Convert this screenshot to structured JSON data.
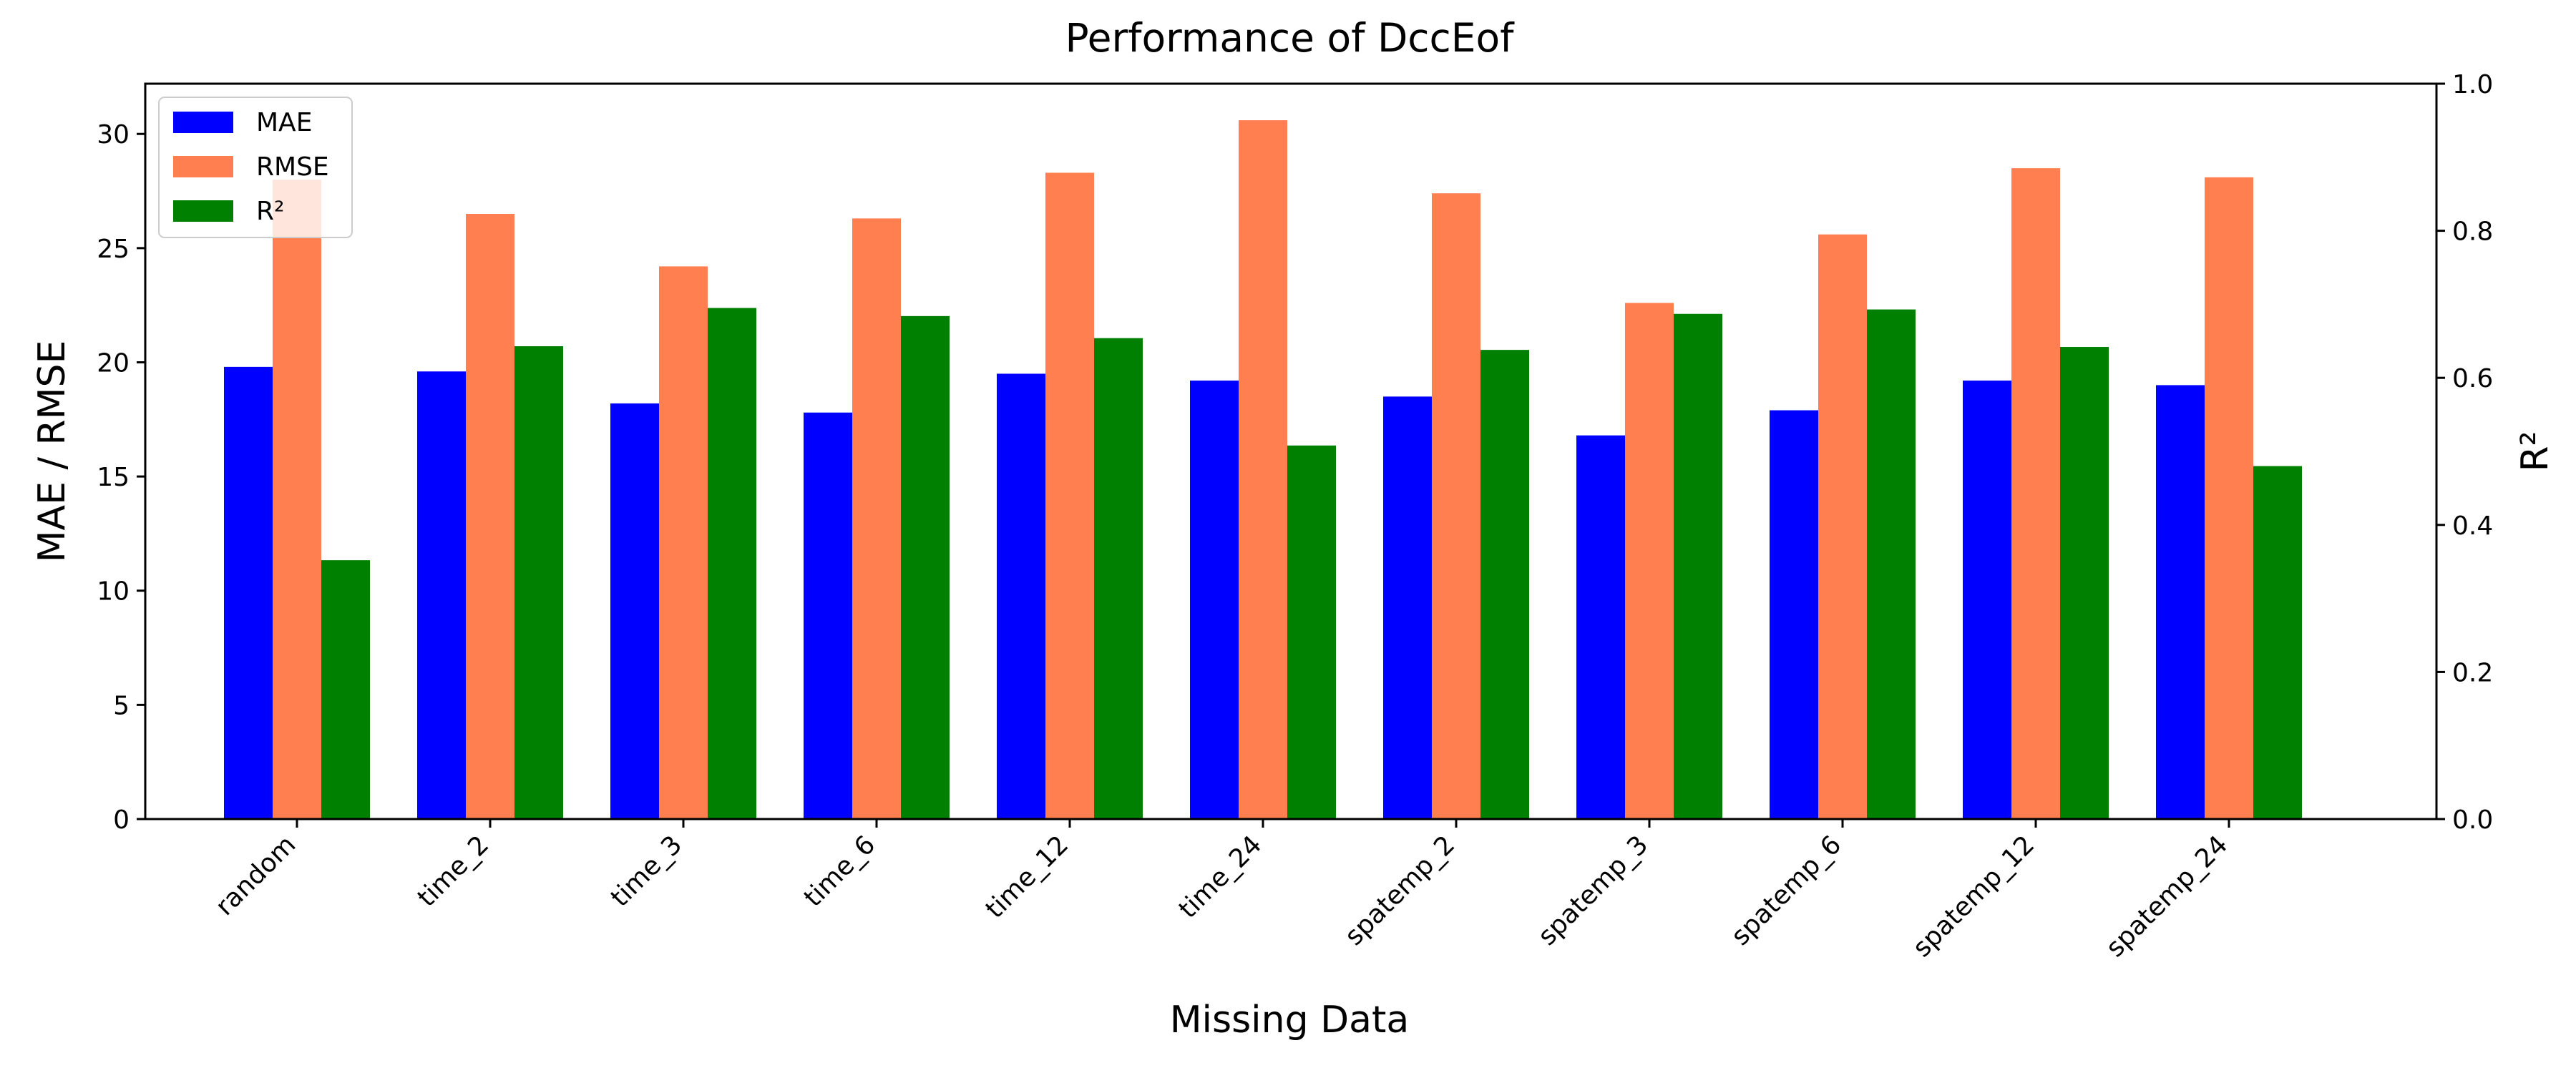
{
  "chart_data": {
    "type": "bar",
    "title": "Performance of DccEof",
    "xlabel": "Missing Data",
    "ylabel": "MAE / RMSE",
    "ylabel_right": "R²",
    "categories": [
      "random",
      "time_2",
      "time_3",
      "time_6",
      "time_12",
      "time_24",
      "spatemp_2",
      "spatemp_3",
      "spatemp_6",
      "spatemp_12",
      "spatemp_24"
    ],
    "ylim": [
      0,
      32.2
    ],
    "ylim_right": [
      0,
      1.0
    ],
    "yticks": [
      0,
      5,
      10,
      15,
      20,
      25,
      30
    ],
    "yticks_right": [
      "0.0",
      "0.2",
      "0.4",
      "0.6",
      "0.8",
      "1.0"
    ],
    "legend_position": "upper-left",
    "grid": false,
    "series": [
      {
        "name": "MAE",
        "axis": "left",
        "color": "#0000ff",
        "values": [
          19.8,
          19.6,
          18.2,
          17.8,
          19.5,
          19.2,
          18.5,
          16.8,
          17.9,
          19.2,
          19.0
        ]
      },
      {
        "name": "RMSE",
        "axis": "left",
        "color": "#ff7f50",
        "values": [
          28.0,
          26.5,
          24.2,
          26.3,
          28.3,
          30.6,
          27.4,
          22.6,
          25.6,
          28.5,
          28.1
        ]
      },
      {
        "name": "R²",
        "axis": "right",
        "color": "#008000",
        "values": [
          0.352,
          0.643,
          0.695,
          0.684,
          0.654,
          0.508,
          0.638,
          0.687,
          0.693,
          0.642,
          0.48
        ]
      }
    ]
  }
}
